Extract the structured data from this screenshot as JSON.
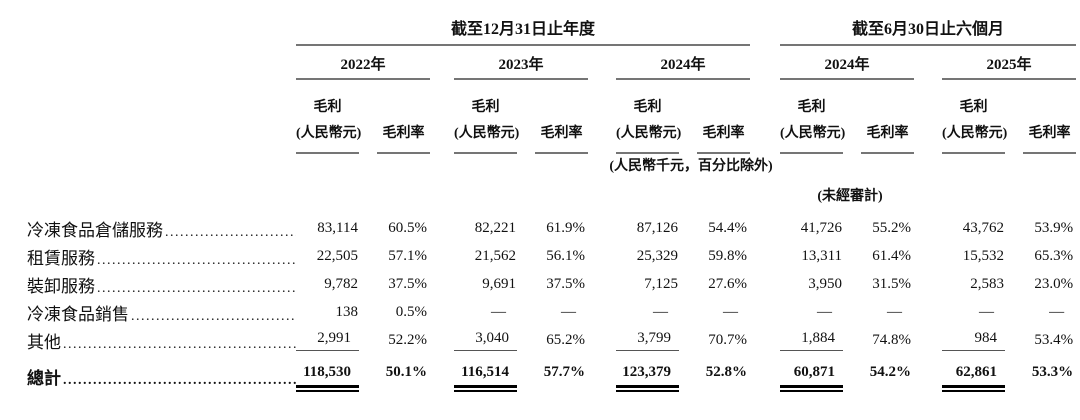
{
  "table": {
    "sections": [
      {
        "title": "截至12月31日止年度",
        "years": [
          "2022年",
          "2023年",
          "2024年"
        ]
      },
      {
        "title": "截至6月30日止六個月",
        "years": [
          "2024年",
          "2025年"
        ]
      }
    ],
    "col_headers": {
      "gp_line1": "毛利",
      "gp_line2": "(人民幣元)",
      "margin": "毛利率"
    },
    "unit_note": "(人民幣千元，百分比除外)",
    "unaudited_note": "(未經審計)",
    "rows": [
      {
        "label": "冷凍食品倉儲服務",
        "values": [
          "83,114",
          "60.5%",
          "82,221",
          "61.9%",
          "87,126",
          "54.4%",
          "41,726",
          "55.2%",
          "43,762",
          "53.9%"
        ]
      },
      {
        "label": "租賃服務",
        "values": [
          "22,505",
          "57.1%",
          "21,562",
          "56.1%",
          "25,329",
          "59.8%",
          "13,311",
          "61.4%",
          "15,532",
          "65.3%"
        ]
      },
      {
        "label": "裝卸服務",
        "values": [
          "9,782",
          "37.5%",
          "9,691",
          "37.5%",
          "7,125",
          "27.6%",
          "3,950",
          "31.5%",
          "2,583",
          "23.0%"
        ]
      },
      {
        "label": "冷凍食品銷售",
        "values": [
          "138",
          "0.5%",
          "—",
          "—",
          "—",
          "—",
          "—",
          "—",
          "—",
          "—"
        ]
      },
      {
        "label": "其他",
        "values": [
          "2,991",
          "52.2%",
          "3,040",
          "65.2%",
          "3,799",
          "70.7%",
          "1,884",
          "74.8%",
          "984",
          "53.4%"
        ]
      }
    ],
    "total_row": {
      "label": "總計",
      "values": [
        "118,530",
        "50.1%",
        "116,514",
        "57.7%",
        "123,379",
        "52.8%",
        "60,871",
        "54.2%",
        "62,861",
        "53.3%"
      ]
    }
  }
}
